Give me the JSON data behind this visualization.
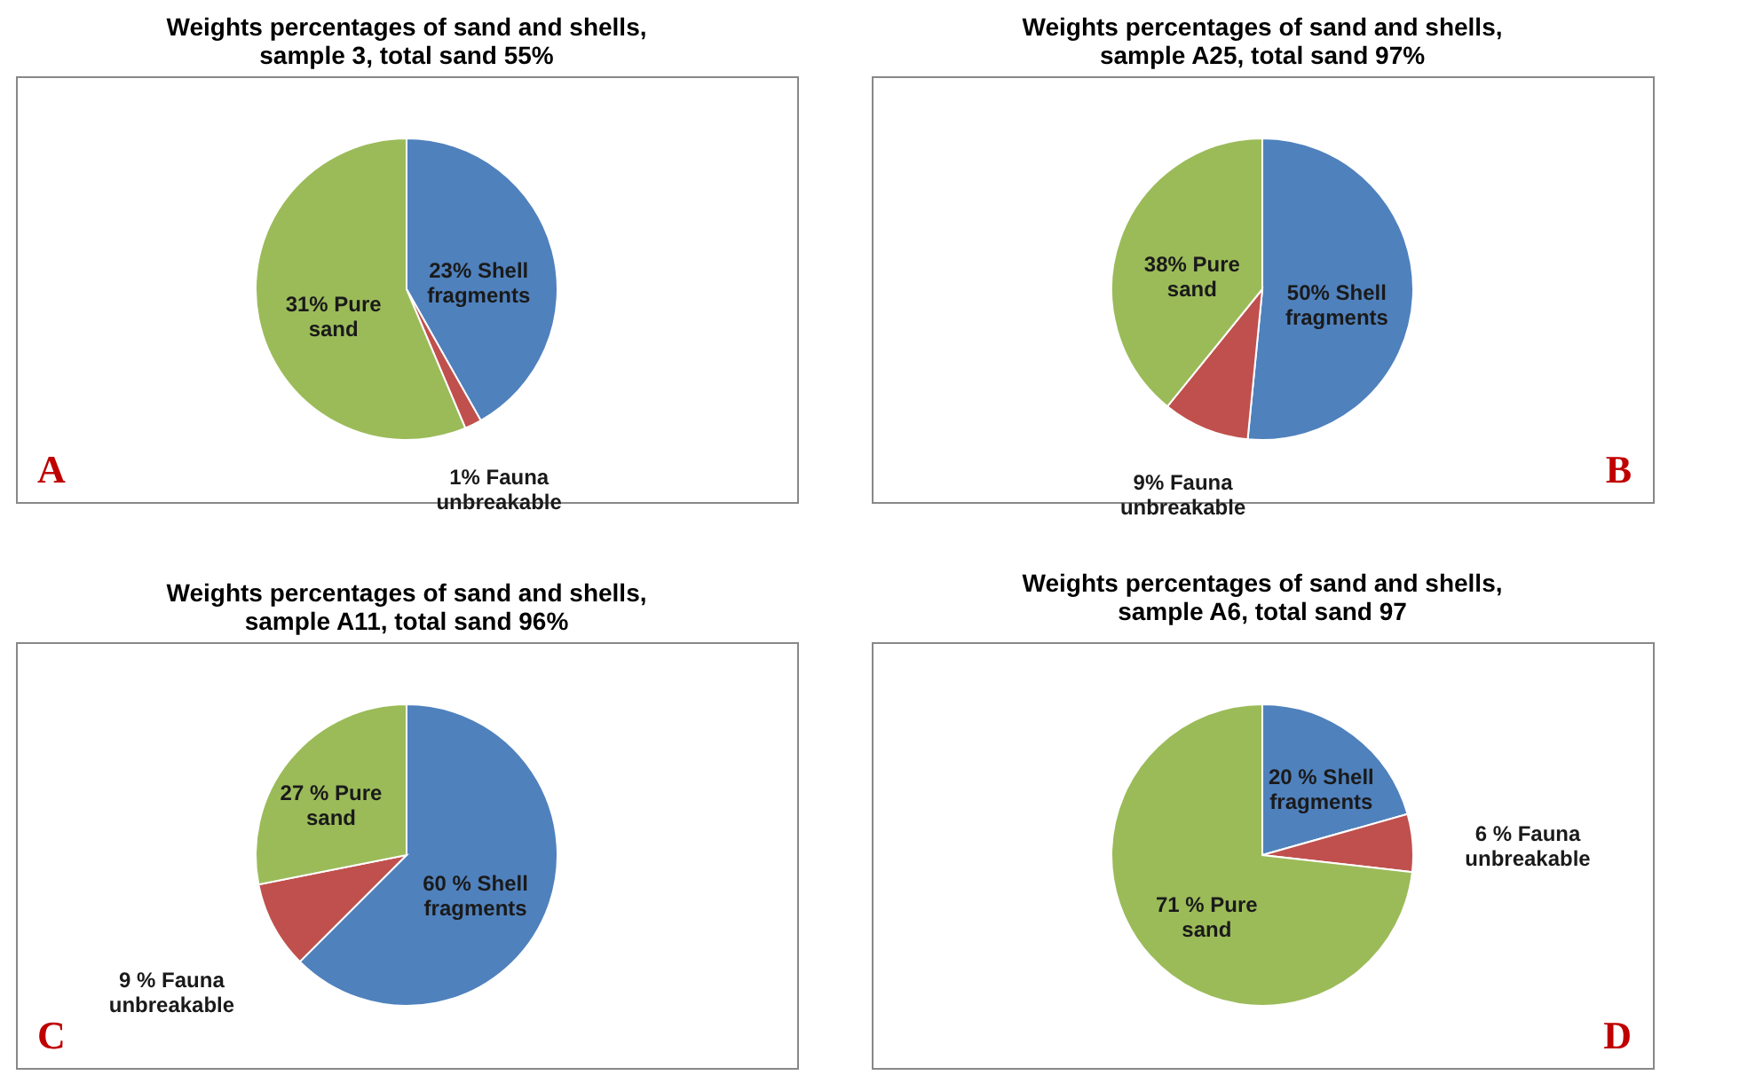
{
  "chart_data": [
    {
      "type": "pie",
      "title": "Weights percentages of sand and shells, sample 3, total sand 55%",
      "categories": [
        "Shell fragments",
        "Fauna unbreakable",
        "Pure sand"
      ],
      "values": [
        23,
        1,
        31
      ],
      "value_labels": [
        "23%",
        "1%",
        "31%"
      ],
      "colors": [
        "#4f81bd",
        "#c0504d",
        "#9bbb59"
      ],
      "annotations": [
        "A"
      ],
      "legend": false
    },
    {
      "type": "pie",
      "title": "Weights percentages of sand and shells, sample A25, total sand 97%",
      "categories": [
        "Shell fragments",
        "Fauna unbreakable",
        "Pure sand"
      ],
      "values": [
        50,
        9,
        38
      ],
      "value_labels": [
        "50%",
        "9%",
        "38%"
      ],
      "colors": [
        "#4f81bd",
        "#c0504d",
        "#9bbb59"
      ],
      "annotations": [
        "B"
      ],
      "legend": false
    },
    {
      "type": "pie",
      "title": "Weights percentages of sand and shells, sample A11, total sand 96%",
      "categories": [
        "Shell fragments",
        "Fauna unbreakable",
        "Pure sand"
      ],
      "values": [
        60,
        9,
        27
      ],
      "value_labels": [
        "60 %",
        "9 %",
        "27 %"
      ],
      "colors": [
        "#4f81bd",
        "#c0504d",
        "#9bbb59"
      ],
      "annotations": [
        "C"
      ],
      "legend": false
    },
    {
      "type": "pie",
      "title": "Weights percentages of sand and shells, sample A6, total sand 97",
      "categories": [
        "Shell fragments",
        "Fauna unbreakable",
        "Pure sand"
      ],
      "values": [
        20,
        6,
        71
      ],
      "value_labels": [
        "20 %",
        "6 %",
        "71 %"
      ],
      "colors": [
        "#4f81bd",
        "#c0504d",
        "#9bbb59"
      ],
      "annotations": [
        "D"
      ],
      "legend": false
    }
  ]
}
